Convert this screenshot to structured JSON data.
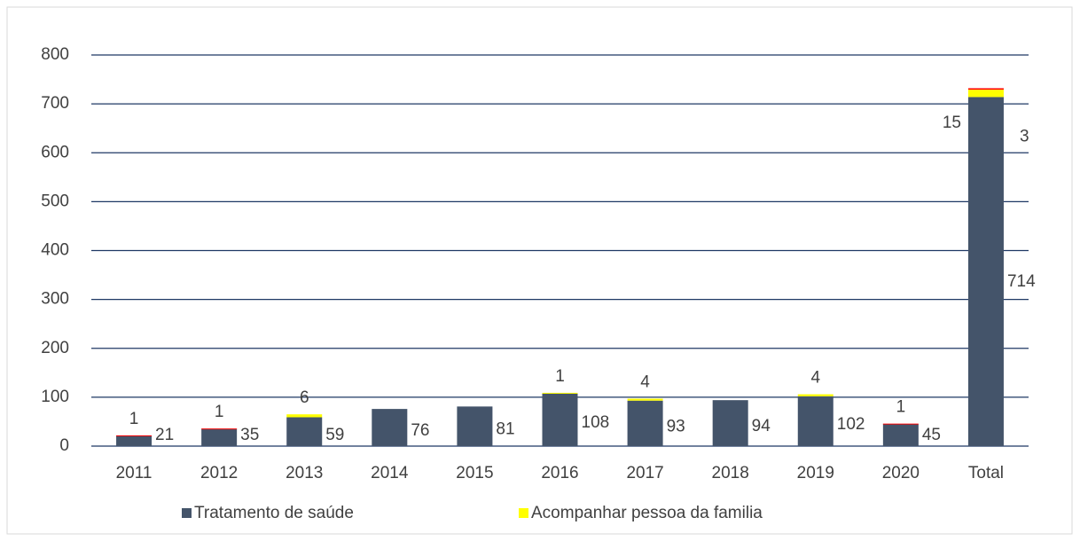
{
  "chart_data": {
    "type": "bar",
    "stacked": true,
    "categories": [
      "2011",
      "2012",
      "2013",
      "2014",
      "2015",
      "2016",
      "2017",
      "2018",
      "2019",
      "2020",
      "Total"
    ],
    "series": [
      {
        "name": "Tratamento de saúde",
        "color": "#44546a",
        "values": [
          21,
          35,
          59,
          76,
          81,
          108,
          93,
          94,
          102,
          45,
          714
        ]
      },
      {
        "name": "Acompanhar pessoa da familia",
        "color": "#ffff00",
        "values": [
          null,
          null,
          6,
          null,
          null,
          1,
          4,
          null,
          4,
          null,
          15
        ]
      },
      {
        "color": "#ff0000",
        "values": [
          1,
          1,
          null,
          null,
          null,
          null,
          null,
          null,
          null,
          1,
          3
        ]
      }
    ],
    "ylim": [
      0,
      800
    ],
    "yticks": [
      0,
      100,
      200,
      300,
      400,
      500,
      600,
      700,
      800
    ],
    "grid": true,
    "legend": "bottom"
  }
}
